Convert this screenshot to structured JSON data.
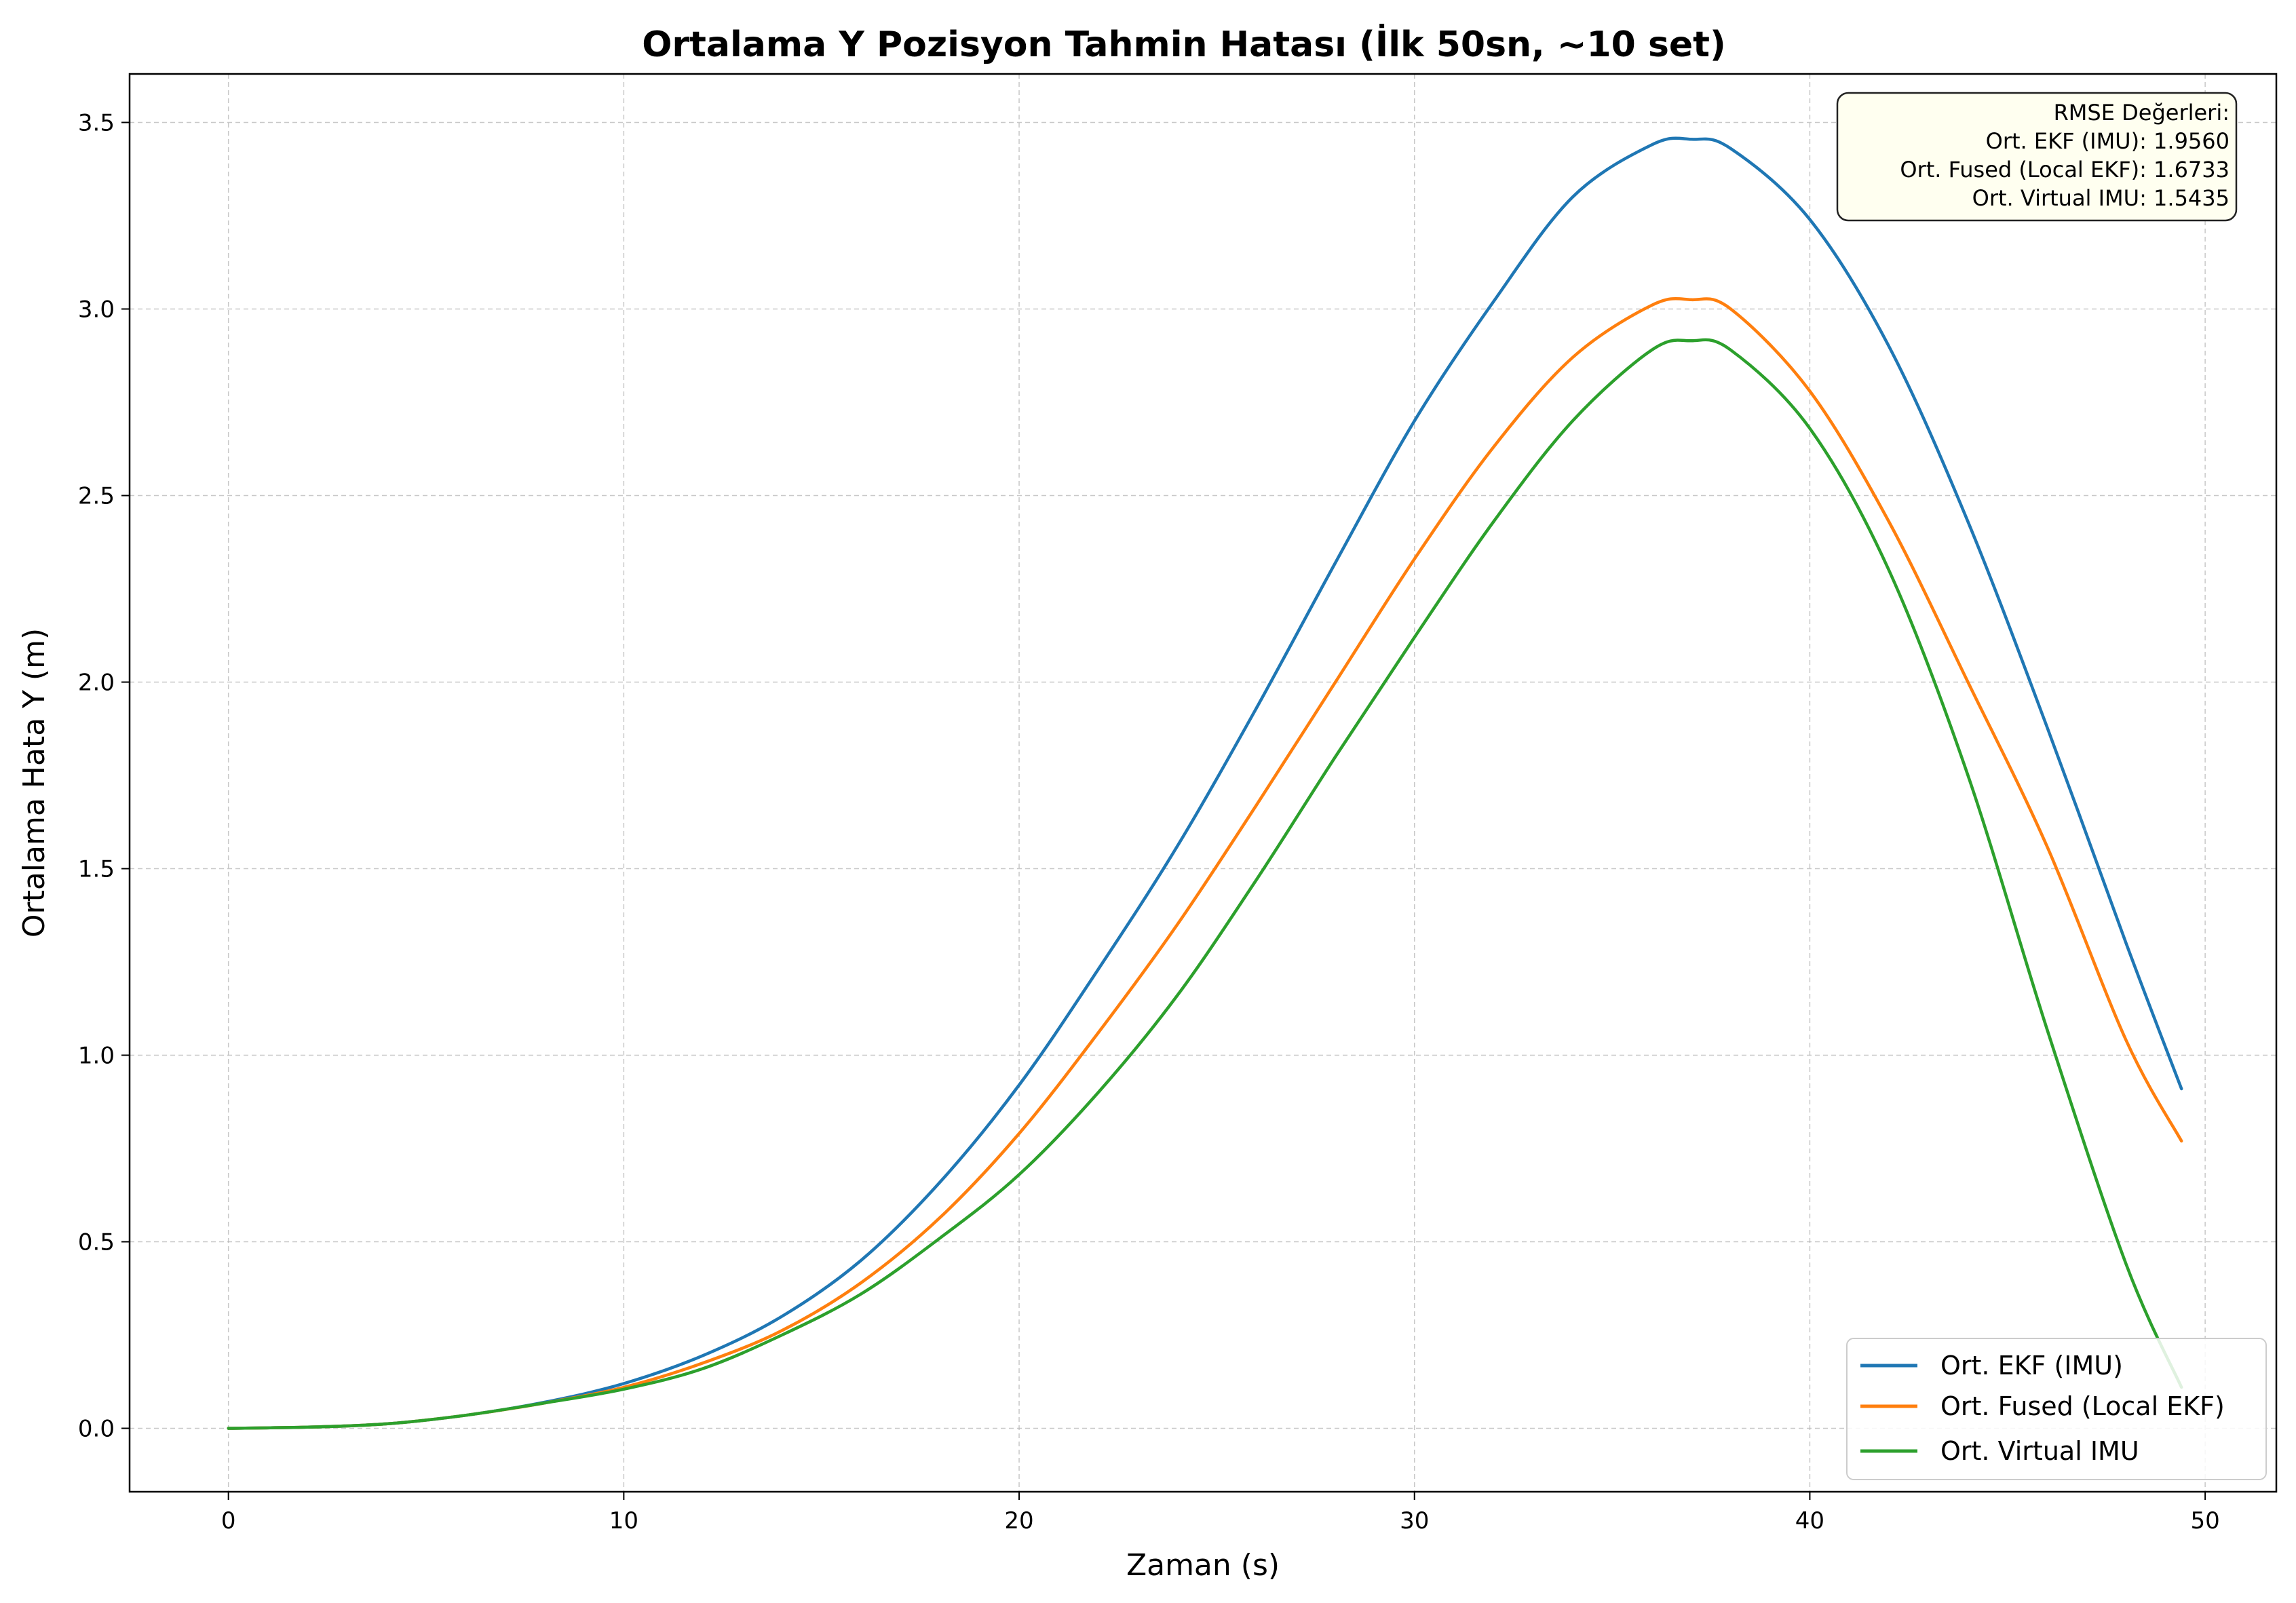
{
  "chart_data": {
    "type": "line",
    "title": "Ortalama Y Pozisyon Tahmin Hatası (İlk 50sn, ~10 set)",
    "xlabel": "Zaman (s)",
    "ylabel": "Ortalama Hata Y (m)",
    "xlim": [
      -2.5,
      51.8
    ],
    "ylim": [
      -0.17,
      3.63
    ],
    "xticks": [
      0,
      10,
      20,
      30,
      40,
      50
    ],
    "yticks": [
      0.0,
      0.5,
      1.0,
      1.5,
      2.0,
      2.5,
      3.0,
      3.5
    ],
    "xtick_labels": [
      "0",
      "10",
      "20",
      "30",
      "40",
      "50"
    ],
    "ytick_labels": [
      "0.0",
      "0.5",
      "1.0",
      "1.5",
      "2.0",
      "2.5",
      "3.0",
      "3.5"
    ],
    "grid": true,
    "legend_position": "bottom-right",
    "annotation": {
      "position": "top-right",
      "lines": [
        "RMSE Değerleri:",
        "Ort. EKF (IMU): 1.9560",
        "Ort. Fused (Local EKF): 1.6733",
        "Ort. Virtual IMU: 1.5435"
      ]
    },
    "x": [
      0,
      2,
      4,
      6,
      8,
      10,
      12,
      14,
      16,
      18,
      20,
      22,
      24,
      26,
      28,
      30,
      32,
      34,
      36,
      37,
      38,
      40,
      42,
      44,
      46,
      48,
      49.4
    ],
    "series": [
      {
        "name": "Ort. EKF (IMU)",
        "color": "#1f77b4",
        "values": [
          0.0,
          0.003,
          0.012,
          0.035,
          0.07,
          0.12,
          0.195,
          0.3,
          0.45,
          0.66,
          0.92,
          1.23,
          1.56,
          1.93,
          2.32,
          2.7,
          3.02,
          3.3,
          3.44,
          3.455,
          3.43,
          3.24,
          2.9,
          2.43,
          1.88,
          1.3,
          0.91
        ]
      },
      {
        "name": "Ort. Fused (Local EKF)",
        "color": "#ff7f0e",
        "values": [
          0.0,
          0.003,
          0.012,
          0.035,
          0.068,
          0.11,
          0.175,
          0.262,
          0.39,
          0.565,
          0.79,
          1.06,
          1.35,
          1.67,
          2.0,
          2.33,
          2.63,
          2.87,
          3.01,
          3.025,
          3.0,
          2.78,
          2.43,
          2.0,
          1.56,
          1.04,
          0.77
        ]
      },
      {
        "name": "Ort. Virtual IMU",
        "color": "#2ca02c",
        "values": [
          0.0,
          0.003,
          0.012,
          0.035,
          0.068,
          0.105,
          0.16,
          0.25,
          0.36,
          0.51,
          0.68,
          0.9,
          1.16,
          1.47,
          1.8,
          2.12,
          2.43,
          2.7,
          2.89,
          2.915,
          2.89,
          2.68,
          2.3,
          1.75,
          1.07,
          0.44,
          0.11
        ]
      }
    ]
  }
}
